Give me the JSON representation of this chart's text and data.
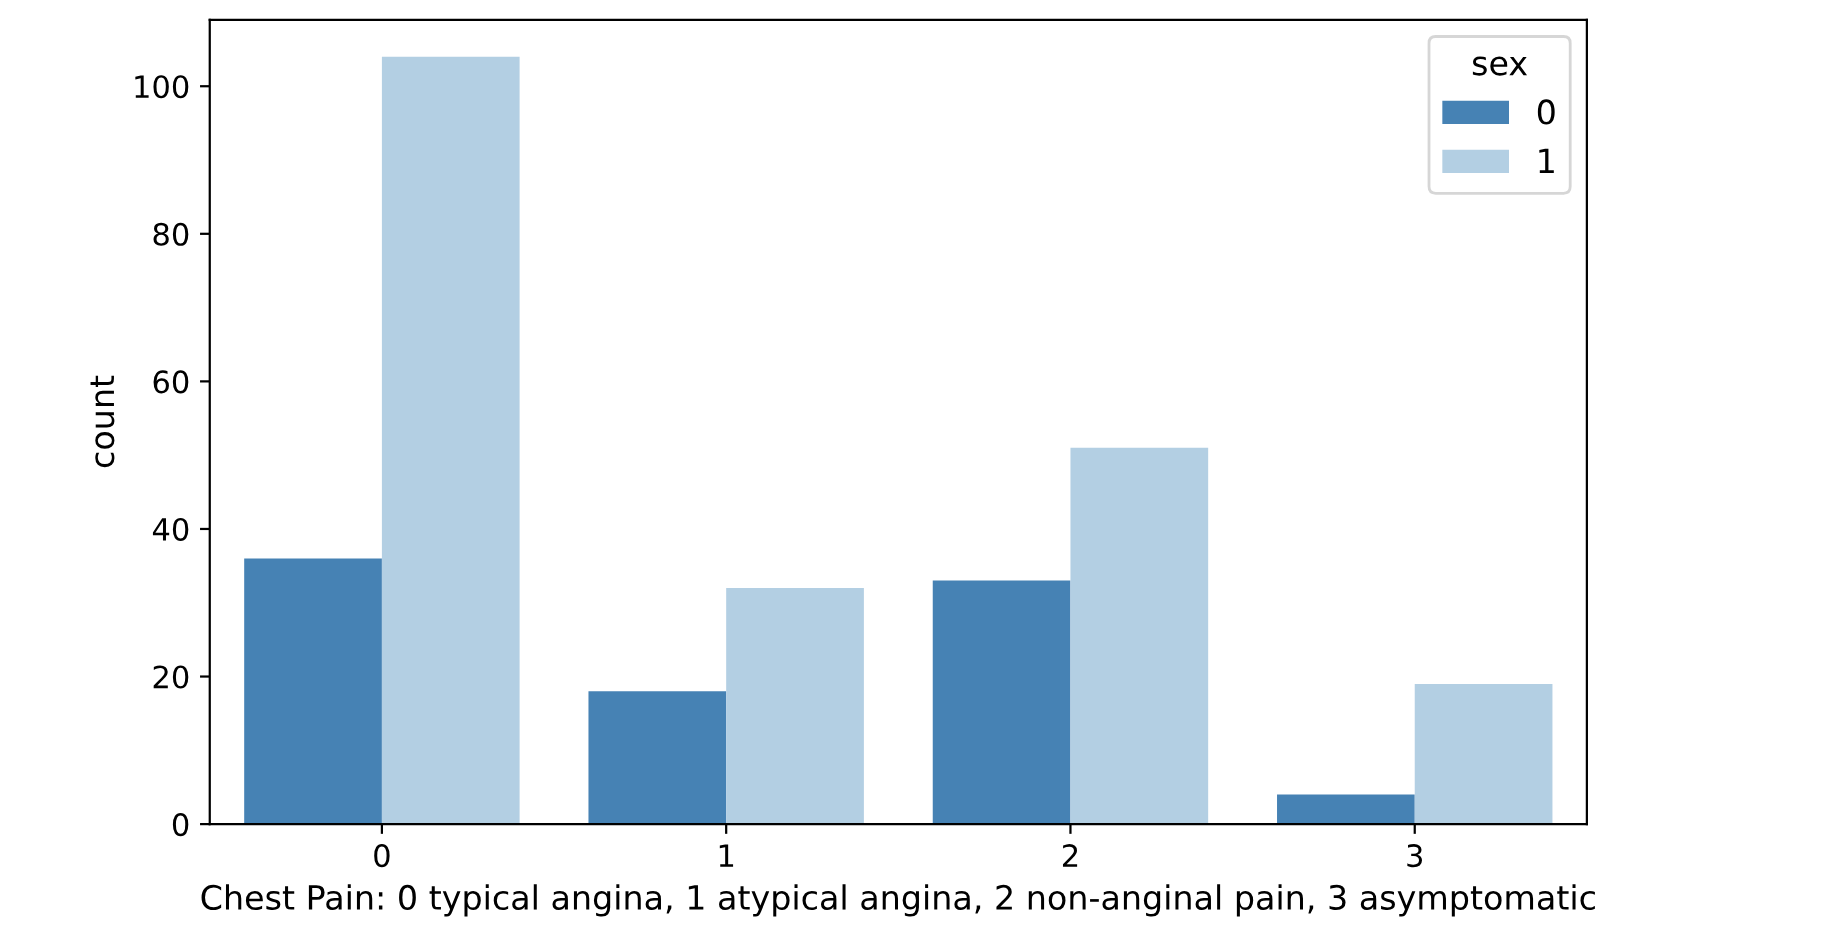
{
  "chart_data": {
    "type": "bar",
    "xlabel": "Chest Pain: 0 typical angina, 1 atypical angina, 2 non-anginal pain, 3 asymptomatic",
    "ylabel": "count",
    "legend_title": "sex",
    "categories": [
      "0",
      "1",
      "2",
      "3"
    ],
    "series": [
      {
        "name": "0",
        "color": "#4682b4",
        "values": [
          36,
          18,
          33,
          4
        ]
      },
      {
        "name": "1",
        "color": "#b3cfe3",
        "values": [
          104,
          32,
          51,
          19
        ]
      }
    ],
    "ylim": [
      0,
      109
    ],
    "yticks": [
      0,
      20,
      40,
      60,
      80,
      100
    ],
    "grid": false,
    "legend": "top right"
  }
}
